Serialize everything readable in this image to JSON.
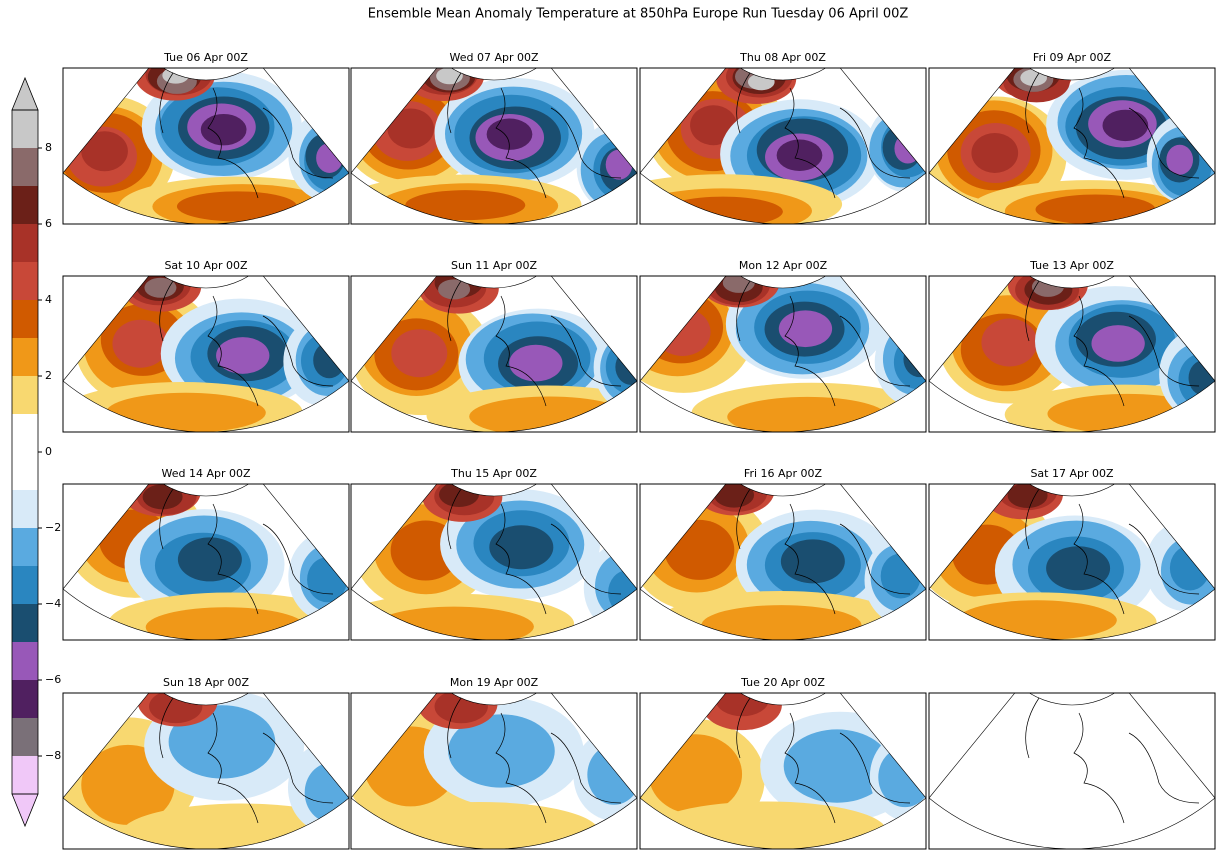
{
  "title": "Ensemble Mean Anomaly Temperature at 850hPa Europe Run Tuesday 06 April 00Z",
  "panels": [
    {
      "title": "Tue 06 Apr 00Z"
    },
    {
      "title": "Wed 07 Apr 00Z"
    },
    {
      "title": "Thu 08 Apr 00Z"
    },
    {
      "title": "Fri 09 Apr 00Z"
    },
    {
      "title": "Sat 10 Apr 00Z"
    },
    {
      "title": "Sun 11 Apr 00Z"
    },
    {
      "title": "Mon 12 Apr 00Z"
    },
    {
      "title": "Tue 13 Apr 00Z"
    },
    {
      "title": "Wed 14 Apr 00Z"
    },
    {
      "title": "Thu 15 Apr 00Z"
    },
    {
      "title": "Fri 16 Apr 00Z"
    },
    {
      "title": "Sat 17 Apr 00Z"
    },
    {
      "title": "Sun 18 Apr 00Z"
    },
    {
      "title": "Mon 19 Apr 00Z"
    },
    {
      "title": "Tue 20 Apr 00Z"
    }
  ],
  "colorbar": {
    "ylim": [
      -9,
      9
    ],
    "boundaries": [
      -9,
      -8,
      -7,
      -6,
      -5,
      -4,
      -3,
      -2,
      -1,
      1,
      2,
      3,
      4,
      5,
      6,
      7,
      8,
      9
    ],
    "colors": [
      "#f0c8f8",
      "#7a7078",
      "#502060",
      "#9858b8",
      "#1a4e70",
      "#2a86c0",
      "#5aaae0",
      "#d8eaf8",
      "#ffffff",
      "#f8d870",
      "#f09818",
      "#d05a00",
      "#c84838",
      "#a83228",
      "#6b2018",
      "#8a6a6a",
      "#c8c8c8"
    ],
    "under": "#f0c8f8",
    "over": "#c8c8c8",
    "yticks": [
      {
        "value": -8,
        "label": "−8"
      },
      {
        "value": -6,
        "label": "−6"
      },
      {
        "value": -4,
        "label": "−4"
      },
      {
        "value": -2,
        "label": "−2"
      },
      0,
      2,
      4,
      6,
      8
    ]
  }
}
